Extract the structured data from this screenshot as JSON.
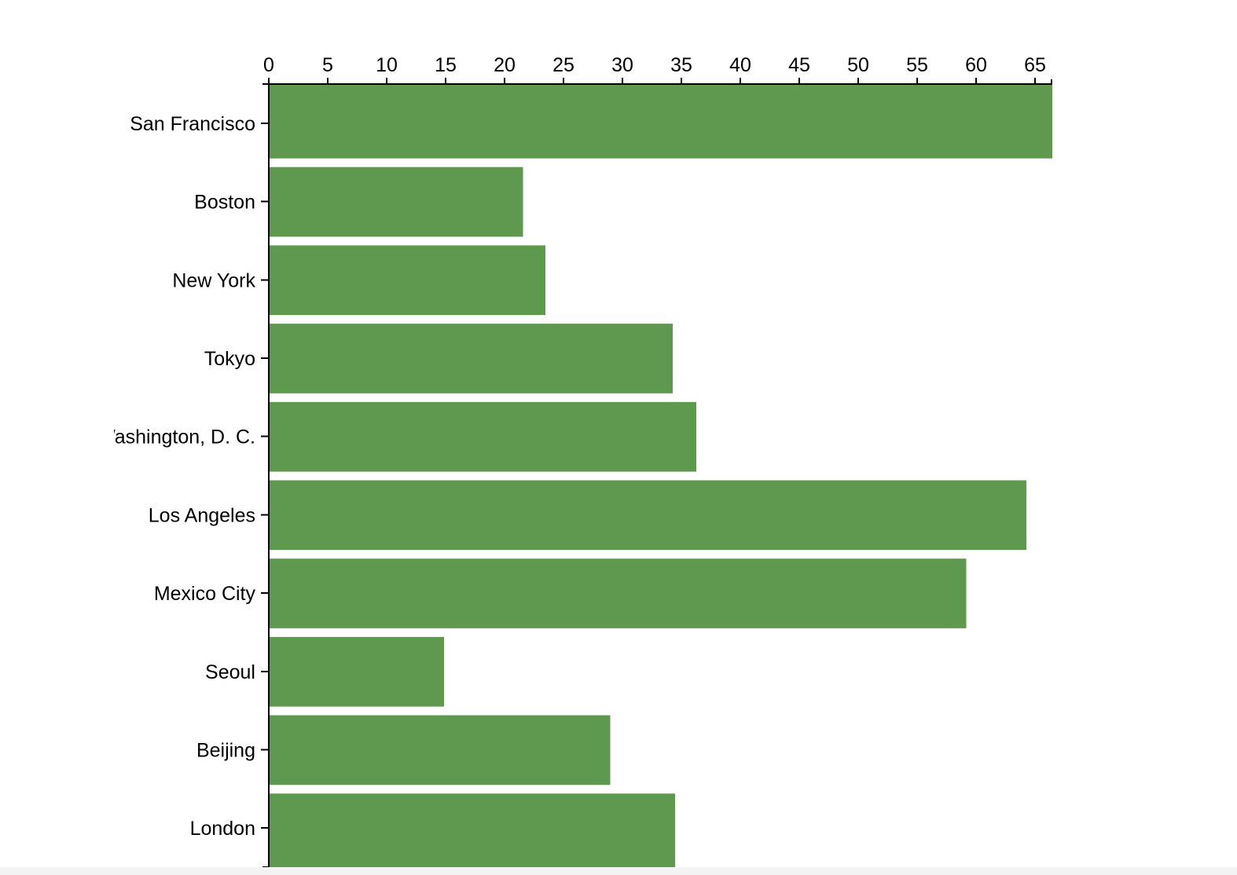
{
  "chart_data": {
    "type": "bar",
    "orientation": "horizontal",
    "title": "",
    "xlabel": "",
    "ylabel": "",
    "categories": [
      "San Francisco",
      "Boston",
      "New York",
      "Tokyo",
      "Washington, D. C.",
      "Los Angeles",
      "Mexico City",
      "Seoul",
      "Beijing",
      "London"
    ],
    "values": [
      66.4,
      21.5,
      23.4,
      34.2,
      36.2,
      64.2,
      59.1,
      14.8,
      28.9,
      34.4
    ],
    "xlim": [
      0,
      66.4
    ],
    "x_ticks": [
      0,
      5,
      10,
      15,
      20,
      25,
      30,
      35,
      40,
      45,
      50,
      55,
      60,
      65
    ],
    "x_axis_position": "top",
    "grid": false,
    "legend": "none",
    "bar_color": "#5f9950"
  }
}
